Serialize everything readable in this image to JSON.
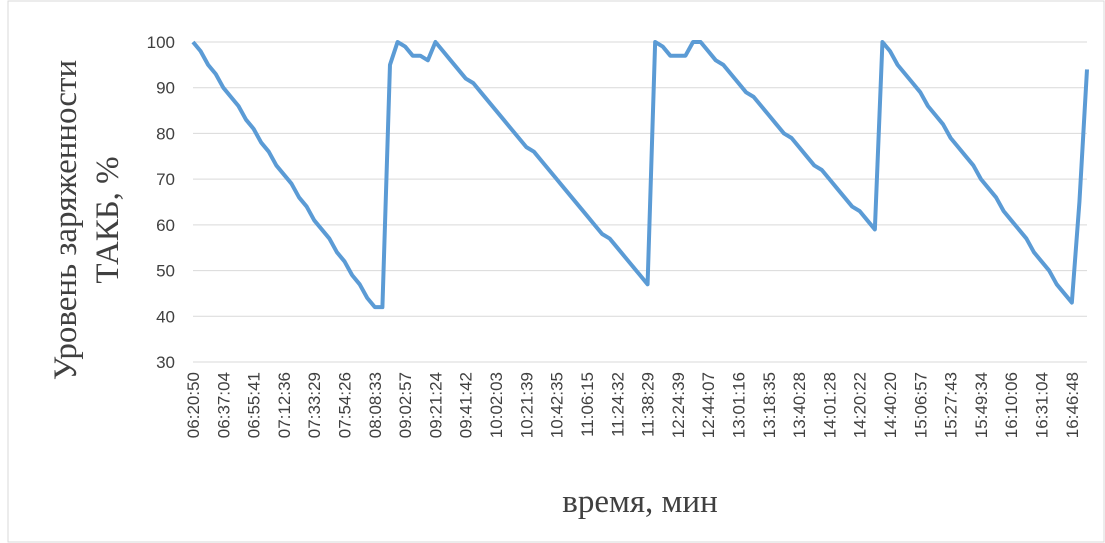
{
  "chart_data": {
    "type": "line",
    "ylabel_lines": [
      "Уровень заряженности",
      "ТАКБ, %"
    ],
    "xlabel": "время, мин",
    "categories": [
      "06:20:50",
      null,
      null,
      null,
      "06:37:04",
      null,
      null,
      null,
      "06:55:41",
      null,
      null,
      null,
      "07:12:36",
      null,
      null,
      null,
      "07:33:29",
      null,
      null,
      null,
      "07:54:26",
      null,
      null,
      null,
      "08:08:33",
      null,
      null,
      null,
      "09:02:57",
      null,
      null,
      null,
      "09:21:24",
      null,
      null,
      null,
      "09:41:42",
      null,
      null,
      null,
      "10:02:03",
      null,
      null,
      null,
      "10:21:39",
      null,
      null,
      null,
      "10:42:35",
      null,
      null,
      null,
      "11:06:15",
      null,
      null,
      null,
      "11:24:32",
      null,
      null,
      null,
      "11:38:29",
      null,
      null,
      null,
      "12:24:39",
      null,
      null,
      null,
      "12:44:07",
      null,
      null,
      null,
      "13:01:16",
      null,
      null,
      null,
      "13:18:35",
      null,
      null,
      null,
      "13:40:28",
      null,
      null,
      null,
      "14:01:28",
      null,
      null,
      null,
      "14:20:22",
      null,
      null,
      null,
      "14:40:20",
      null,
      null,
      null,
      "15:06:57",
      null,
      null,
      null,
      "15:27:43",
      null,
      null,
      null,
      "15:49:34",
      null,
      null,
      null,
      "16:10:06",
      null,
      null,
      null,
      "16:31:04",
      null,
      null,
      null,
      "16:46:48",
      null,
      null
    ],
    "series": [
      {
        "color": "#5b9bd5",
        "values": [
          100,
          98,
          95,
          93,
          90,
          88,
          86,
          83,
          81,
          78,
          76,
          73,
          71,
          69,
          66,
          64,
          61,
          59,
          57,
          54,
          52,
          49,
          47,
          44,
          42,
          42,
          95,
          100,
          99,
          97,
          97,
          96,
          100,
          98,
          96,
          94,
          92,
          91,
          89,
          87,
          85,
          83,
          81,
          79,
          77,
          76,
          74,
          72,
          70,
          68,
          66,
          64,
          62,
          60,
          58,
          57,
          55,
          53,
          51,
          49,
          47,
          100,
          99,
          97,
          97,
          97,
          100,
          100,
          98,
          96,
          95,
          93,
          91,
          89,
          88,
          86,
          84,
          82,
          80,
          79,
          77,
          75,
          73,
          72,
          70,
          68,
          66,
          64,
          63,
          61,
          59,
          100,
          98,
          95,
          93,
          91,
          89,
          86,
          84,
          82,
          79,
          77,
          75,
          73,
          70,
          68,
          66,
          63,
          61,
          59,
          57,
          54,
          52,
          50,
          47,
          45,
          43,
          65,
          94
        ]
      }
    ],
    "ylim": [
      30,
      100
    ],
    "yticks": [
      30,
      40,
      50,
      60,
      70,
      80,
      90,
      100
    ],
    "grid": true
  }
}
